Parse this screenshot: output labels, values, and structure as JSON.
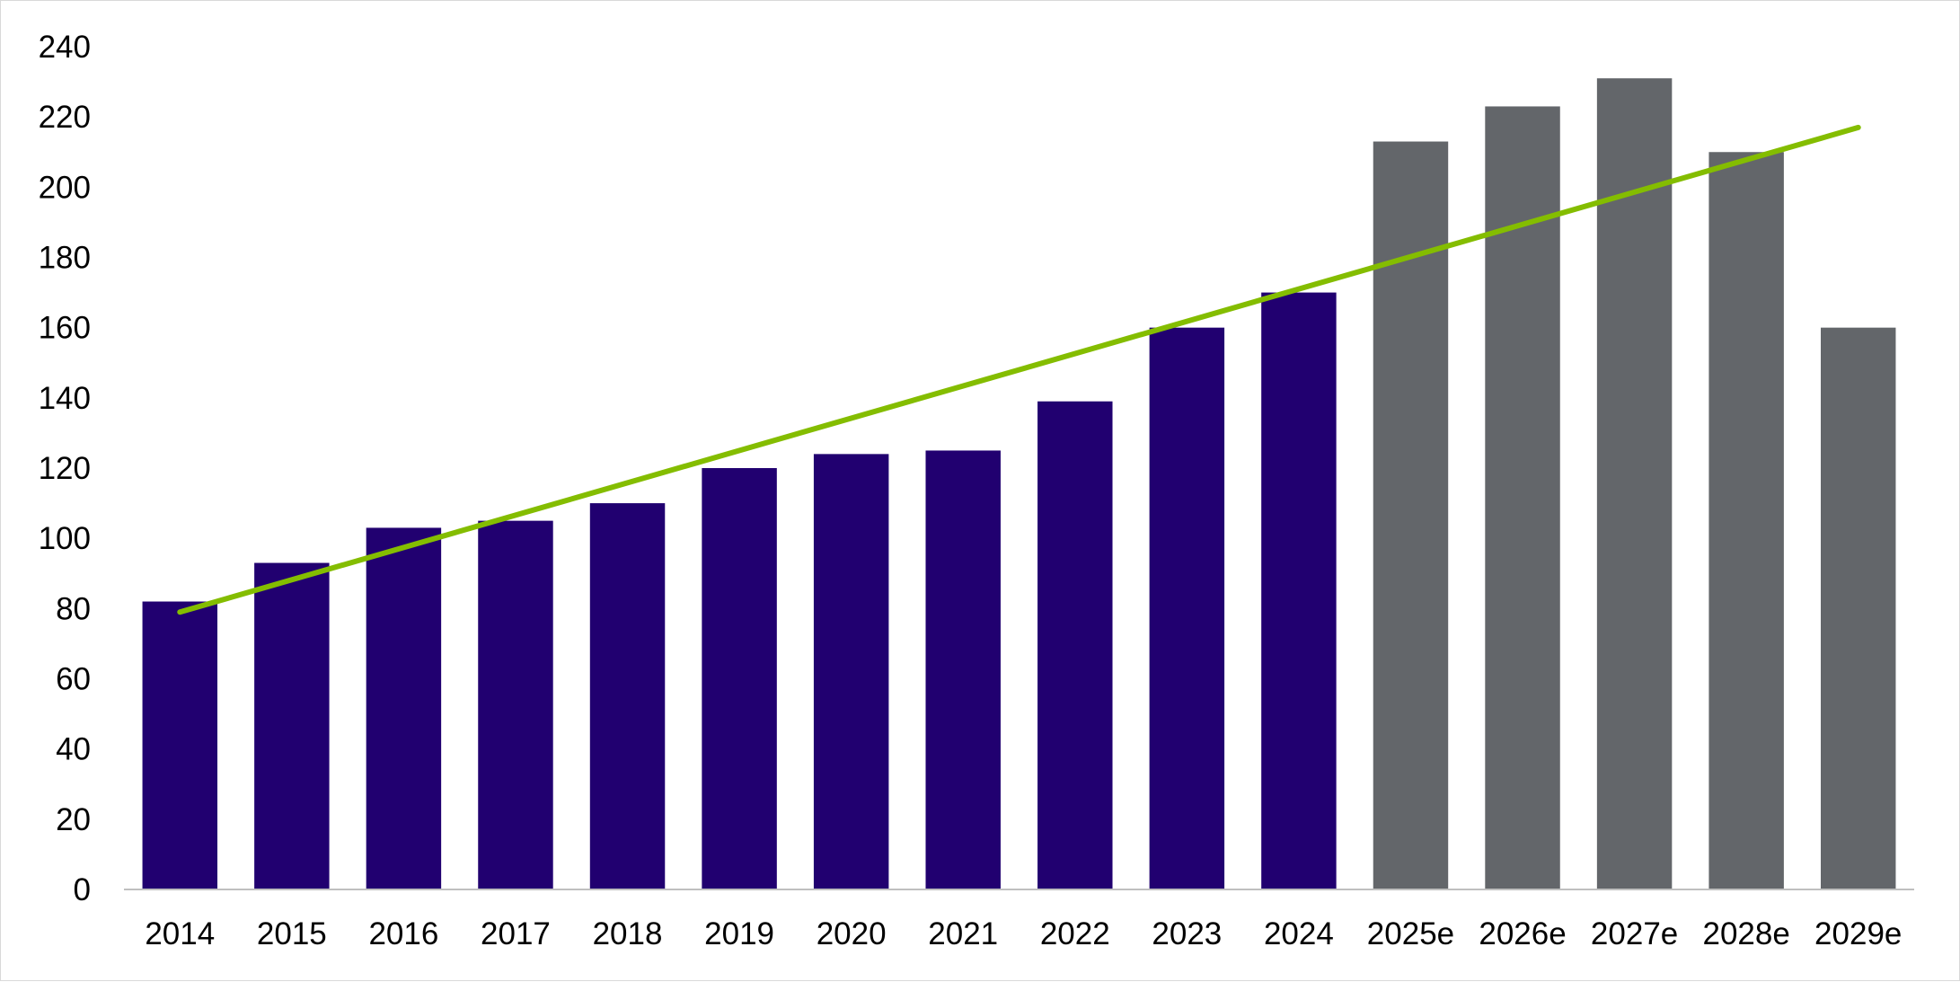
{
  "chart_data": {
    "type": "bar",
    "title": "",
    "xlabel": "",
    "ylabel": "",
    "categories": [
      "2014",
      "2015",
      "2016",
      "2017",
      "2018",
      "2019",
      "2020",
      "2021",
      "2022",
      "2023",
      "2024",
      "2025e",
      "2026e",
      "2027e",
      "2028e",
      "2029e"
    ],
    "values": [
      82,
      93,
      103,
      105,
      110,
      120,
      124,
      125,
      139,
      160,
      170,
      213,
      223,
      231,
      210,
      160
    ],
    "estimate_flags": [
      false,
      false,
      false,
      false,
      false,
      false,
      false,
      false,
      false,
      false,
      false,
      true,
      true,
      true,
      true,
      true
    ],
    "ylim": [
      0,
      240
    ],
    "yticks": [
      0,
      20,
      40,
      60,
      80,
      100,
      120,
      140,
      160,
      180,
      200,
      220,
      240
    ],
    "grid": false,
    "legend": "none",
    "trendline": {
      "type": "linear",
      "start": 79,
      "end": 217
    },
    "colors": {
      "actual": "#210070",
      "estimate": "#63666a",
      "trendline": "#84bd00",
      "axis": "#bfbfbf",
      "text": "#000000"
    }
  }
}
